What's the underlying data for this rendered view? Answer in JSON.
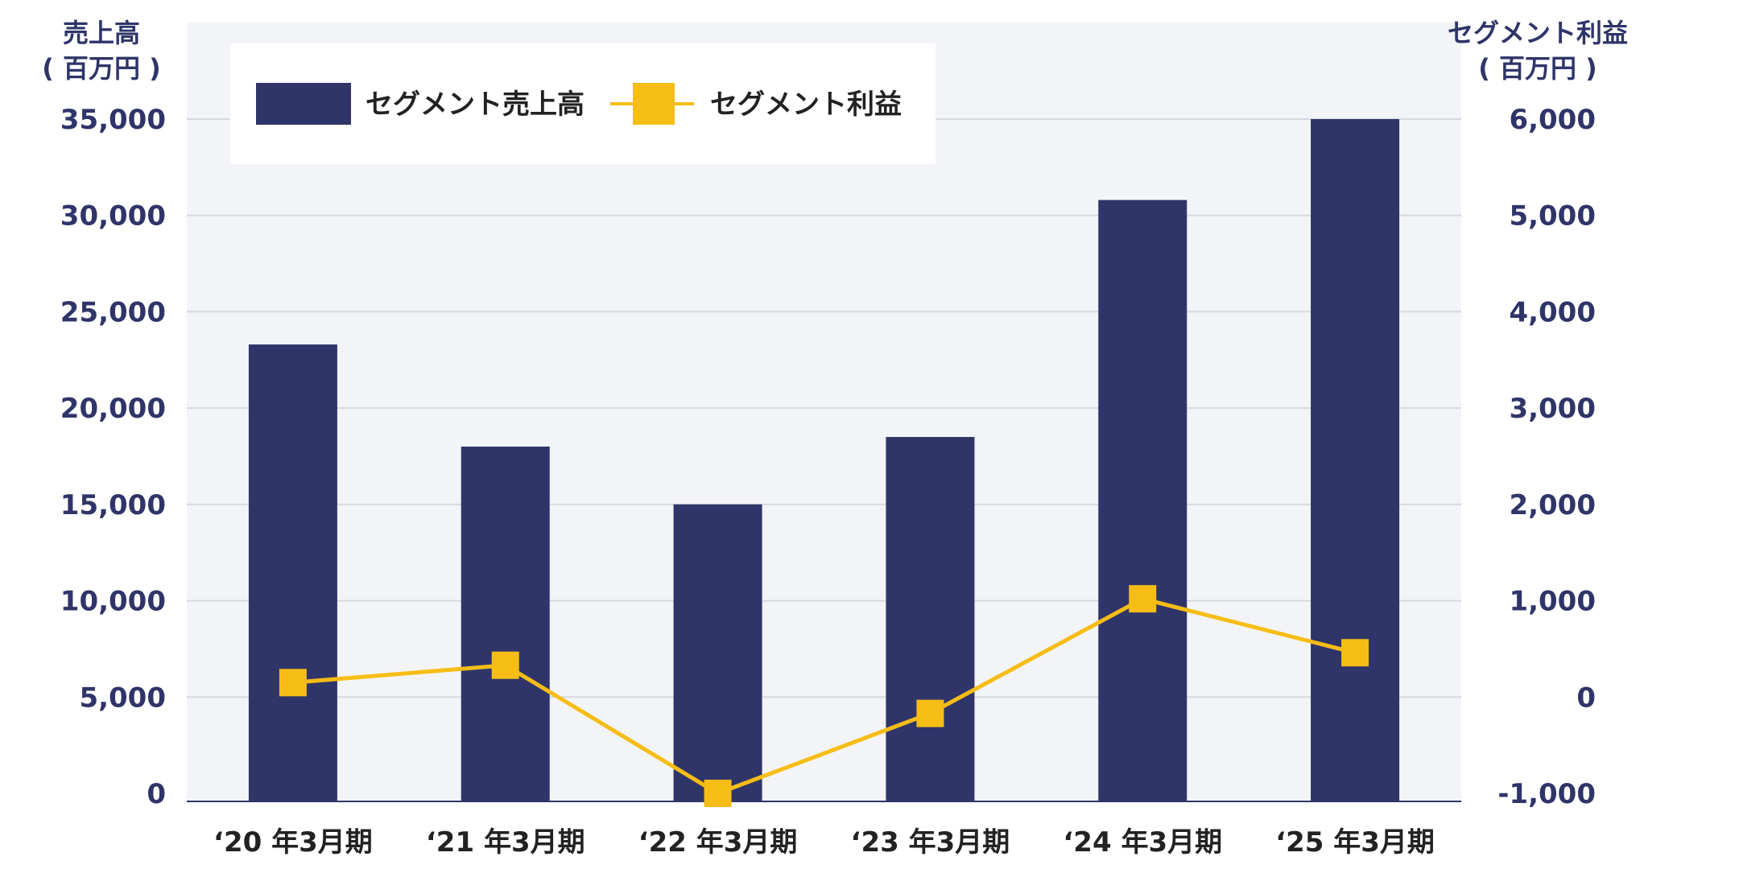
{
  "chart_data": {
    "type": "bar",
    "categories": [
      "‘20 年3月期",
      "‘21 年3月期",
      "‘22 年3月期",
      "‘23 年3月期",
      "‘24 年3月期",
      "‘25 年3月期"
    ],
    "series": [
      {
        "name": "セグメント売上高",
        "type": "bar",
        "axis": "left",
        "color": "#2f3569",
        "values": [
          23300,
          18000,
          15000,
          18500,
          30800,
          35000
        ]
      },
      {
        "name": "セグメント利益",
        "type": "line",
        "axis": "right",
        "color": "#f6bd16",
        "values": [
          150,
          330,
          -1000,
          -170,
          1020,
          460
        ]
      }
    ],
    "y_left": {
      "label_line1": "売上高",
      "label_line2": "( 百万円 )",
      "ylim": [
        0,
        35000
      ],
      "ticks": [
        "0",
        "5,000",
        "10,000",
        "15,000",
        "20,000",
        "25,000",
        "30,000",
        "35,000"
      ]
    },
    "y_right": {
      "label_line1": "セグメント利益",
      "label_line2": "( 百万円 )",
      "ylim": [
        -1000,
        6000
      ],
      "ticks": [
        "-1,000",
        "0",
        "1,000",
        "2,000",
        "3,000",
        "4,000",
        "5,000",
        "6,000"
      ]
    },
    "legend": {
      "position": "top-left",
      "items": [
        "セグメント売上高",
        "セグメント利益"
      ]
    },
    "grid": true,
    "plot_background": "#f3f4f8",
    "grid_color": "#d6d8e2"
  }
}
